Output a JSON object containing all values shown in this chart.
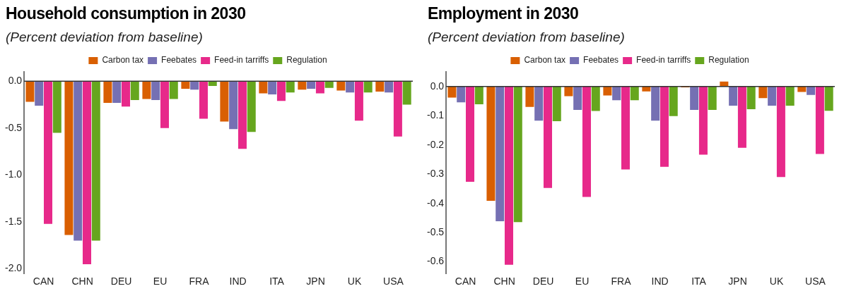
{
  "chart_data": [
    {
      "type": "bar",
      "title": "Household consumption in 2030",
      "subtitle": "(Percent deviation from baseline)",
      "categories": [
        "CAN",
        "CHN",
        "DEU",
        "EU",
        "FRA",
        "IND",
        "ITA",
        "JPN",
        "UK",
        "USA"
      ],
      "series": [
        {
          "name": "Carbon tax",
          "color": "#d95f02",
          "values": [
            -0.22,
            -1.64,
            -0.23,
            -0.19,
            -0.08,
            -0.43,
            -0.13,
            -0.09,
            -0.1,
            -0.11
          ]
        },
        {
          "name": "Feebates",
          "color": "#7570b3",
          "values": [
            -0.26,
            -1.7,
            -0.23,
            -0.2,
            -0.09,
            -0.51,
            -0.14,
            -0.08,
            -0.12,
            -0.12
          ]
        },
        {
          "name": "Feed-in tarriffs",
          "color": "#e7298a",
          "values": [
            -1.52,
            -1.95,
            -0.27,
            -0.5,
            -0.4,
            -0.72,
            -0.21,
            -0.13,
            -0.42,
            -0.59
          ]
        },
        {
          "name": "Regulation",
          "color": "#66a61e",
          "values": [
            -0.55,
            -1.7,
            -0.2,
            -0.19,
            -0.05,
            -0.54,
            -0.12,
            -0.07,
            -0.12,
            -0.25
          ]
        }
      ],
      "ref_lines": [
        {
          "axis": "y",
          "value": 0,
          "color": "#333333"
        }
      ],
      "ylim": [
        -2.05,
        0.1
      ],
      "yticks": [
        {
          "value": 0,
          "label": "0.0"
        },
        -0.5,
        {
          "value": -1,
          "label": "-1.0"
        },
        -1.5,
        {
          "value": -2,
          "label": "-2.0"
        }
      ],
      "grid": false,
      "legend": "top"
    },
    {
      "type": "bar",
      "title": "Employment in 2030",
      "subtitle": "(Percent deviation from baseline)",
      "categories": [
        "CAN",
        "CHN",
        "DEU",
        "EU",
        "FRA",
        "IND",
        "ITA",
        "JPN",
        "UK",
        "USA"
      ],
      "series": [
        {
          "name": "Carbon tax",
          "color": "#d95f02",
          "values": [
            -0.038,
            -0.391,
            -0.07,
            -0.033,
            -0.031,
            -0.017,
            -0.003,
            0.017,
            -0.04,
            -0.019
          ]
        },
        {
          "name": "Feebates",
          "color": "#7570b3",
          "values": [
            -0.054,
            -0.461,
            -0.117,
            -0.08,
            -0.047,
            -0.117,
            -0.08,
            -0.066,
            -0.066,
            -0.029
          ]
        },
        {
          "name": "Feed-in tarriffs",
          "color": "#e7298a",
          "values": [
            -0.326,
            -0.61,
            -0.347,
            -0.378,
            -0.284,
            -0.275,
            -0.233,
            -0.21,
            -0.31,
            -0.231
          ]
        },
        {
          "name": "Regulation",
          "color": "#66a61e",
          "values": [
            -0.061,
            -0.464,
            -0.119,
            -0.084,
            -0.047,
            -0.101,
            -0.08,
            -0.078,
            -0.066,
            -0.083
          ]
        }
      ],
      "ref_lines": [
        {
          "axis": "y",
          "value": 0,
          "color": "#333333"
        }
      ],
      "ylim": [
        -0.64,
        0.05
      ],
      "yticks": [
        {
          "value": 0,
          "label": "0.0"
        },
        -0.1,
        -0.2,
        -0.3,
        -0.4,
        -0.5,
        -0.6
      ],
      "grid": false,
      "legend": "top"
    }
  ]
}
